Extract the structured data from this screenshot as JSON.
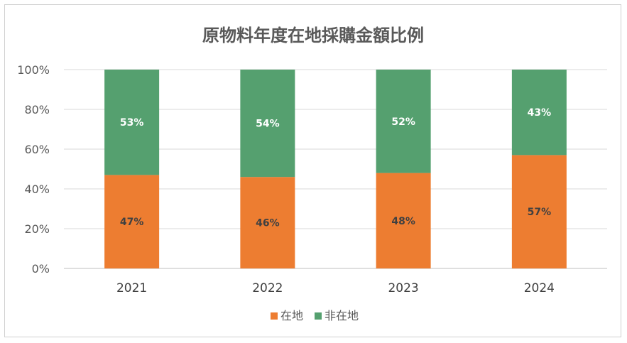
{
  "chart_data": {
    "type": "bar",
    "stacked": true,
    "title": "原物料年度在地採購金額比例",
    "categories": [
      "2021",
      "2022",
      "2023",
      "2024"
    ],
    "series": [
      {
        "name": "在地",
        "values": [
          47,
          46,
          48,
          57
        ],
        "labels": [
          "47%",
          "46%",
          "48%",
          "57%"
        ],
        "color": "#ED7D31"
      },
      {
        "name": "非在地",
        "values": [
          53,
          54,
          52,
          43
        ],
        "labels": [
          "53%",
          "54%",
          "52%",
          "43%"
        ],
        "color": "#55A06F"
      }
    ],
    "ylim": [
      0,
      100
    ],
    "yticks": [
      "0%",
      "20%",
      "40%",
      "60%",
      "80%",
      "100%"
    ],
    "grid": true,
    "legend": "bottom"
  }
}
